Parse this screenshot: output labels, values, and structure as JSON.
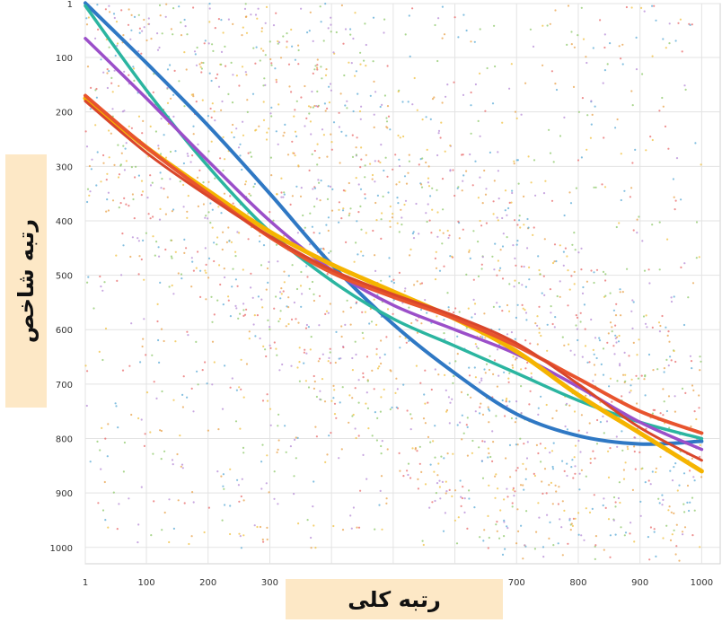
{
  "chart_data": {
    "type": "scatter",
    "xlabel": "رتبه کلی",
    "ylabel": "رتبه شاخص",
    "x_ticks": [
      "1",
      "100",
      "200",
      "300",
      "400",
      "500",
      "600",
      "700",
      "800",
      "900",
      "1000"
    ],
    "y_ticks": [
      "1",
      "100",
      "200",
      "300",
      "400",
      "500",
      "600",
      "700",
      "800",
      "900",
      "1000"
    ],
    "xlim": [
      1,
      1030
    ],
    "ylim": [
      1,
      1030
    ],
    "y_inverted": true,
    "grid": true,
    "scatter_colors": [
      "#5aa9d6",
      "#e8a24a",
      "#e86a6a",
      "#8ec86a",
      "#b58ad6",
      "#f0c040"
    ],
    "trend_lines": [
      {
        "color": "#2f78c4",
        "width": 4,
        "points": [
          [
            1,
            0
          ],
          [
            100,
            110
          ],
          [
            200,
            225
          ],
          [
            300,
            350
          ],
          [
            400,
            480
          ],
          [
            500,
            590
          ],
          [
            600,
            680
          ],
          [
            700,
            755
          ],
          [
            800,
            795
          ],
          [
            900,
            810
          ],
          [
            1000,
            805
          ]
        ]
      },
      {
        "color": "#2bb5a0",
        "width": 3.5,
        "points": [
          [
            1,
            5
          ],
          [
            100,
            160
          ],
          [
            200,
            300
          ],
          [
            300,
            420
          ],
          [
            400,
            510
          ],
          [
            500,
            580
          ],
          [
            600,
            630
          ],
          [
            700,
            680
          ],
          [
            800,
            730
          ],
          [
            900,
            770
          ],
          [
            1000,
            800
          ]
        ]
      },
      {
        "color": "#9b4fc9",
        "width": 3.5,
        "points": [
          [
            1,
            65
          ],
          [
            100,
            175
          ],
          [
            200,
            290
          ],
          [
            300,
            400
          ],
          [
            400,
            490
          ],
          [
            500,
            555
          ],
          [
            600,
            600
          ],
          [
            700,
            645
          ],
          [
            800,
            705
          ],
          [
            900,
            770
          ],
          [
            1000,
            820
          ]
        ]
      },
      {
        "color": "#f5b400",
        "width": 5,
        "points": [
          [
            1,
            175
          ],
          [
            100,
            265
          ],
          [
            200,
            345
          ],
          [
            300,
            420
          ],
          [
            400,
            480
          ],
          [
            500,
            530
          ],
          [
            600,
            580
          ],
          [
            700,
            640
          ],
          [
            800,
            720
          ],
          [
            900,
            790
          ],
          [
            1000,
            860
          ]
        ]
      },
      {
        "color": "#e8542e",
        "width": 4,
        "points": [
          [
            1,
            170
          ],
          [
            100,
            265
          ],
          [
            200,
            350
          ],
          [
            300,
            430
          ],
          [
            400,
            495
          ],
          [
            500,
            540
          ],
          [
            600,
            580
          ],
          [
            700,
            630
          ],
          [
            800,
            690
          ],
          [
            900,
            750
          ],
          [
            1000,
            790
          ]
        ]
      },
      {
        "color": "#d9462b",
        "width": 3,
        "points": [
          [
            1,
            180
          ],
          [
            100,
            275
          ],
          [
            200,
            355
          ],
          [
            300,
            428
          ],
          [
            400,
            490
          ],
          [
            500,
            535
          ],
          [
            600,
            575
          ],
          [
            700,
            625
          ],
          [
            800,
            700
          ],
          [
            900,
            780
          ],
          [
            1000,
            840
          ]
        ]
      }
    ]
  }
}
